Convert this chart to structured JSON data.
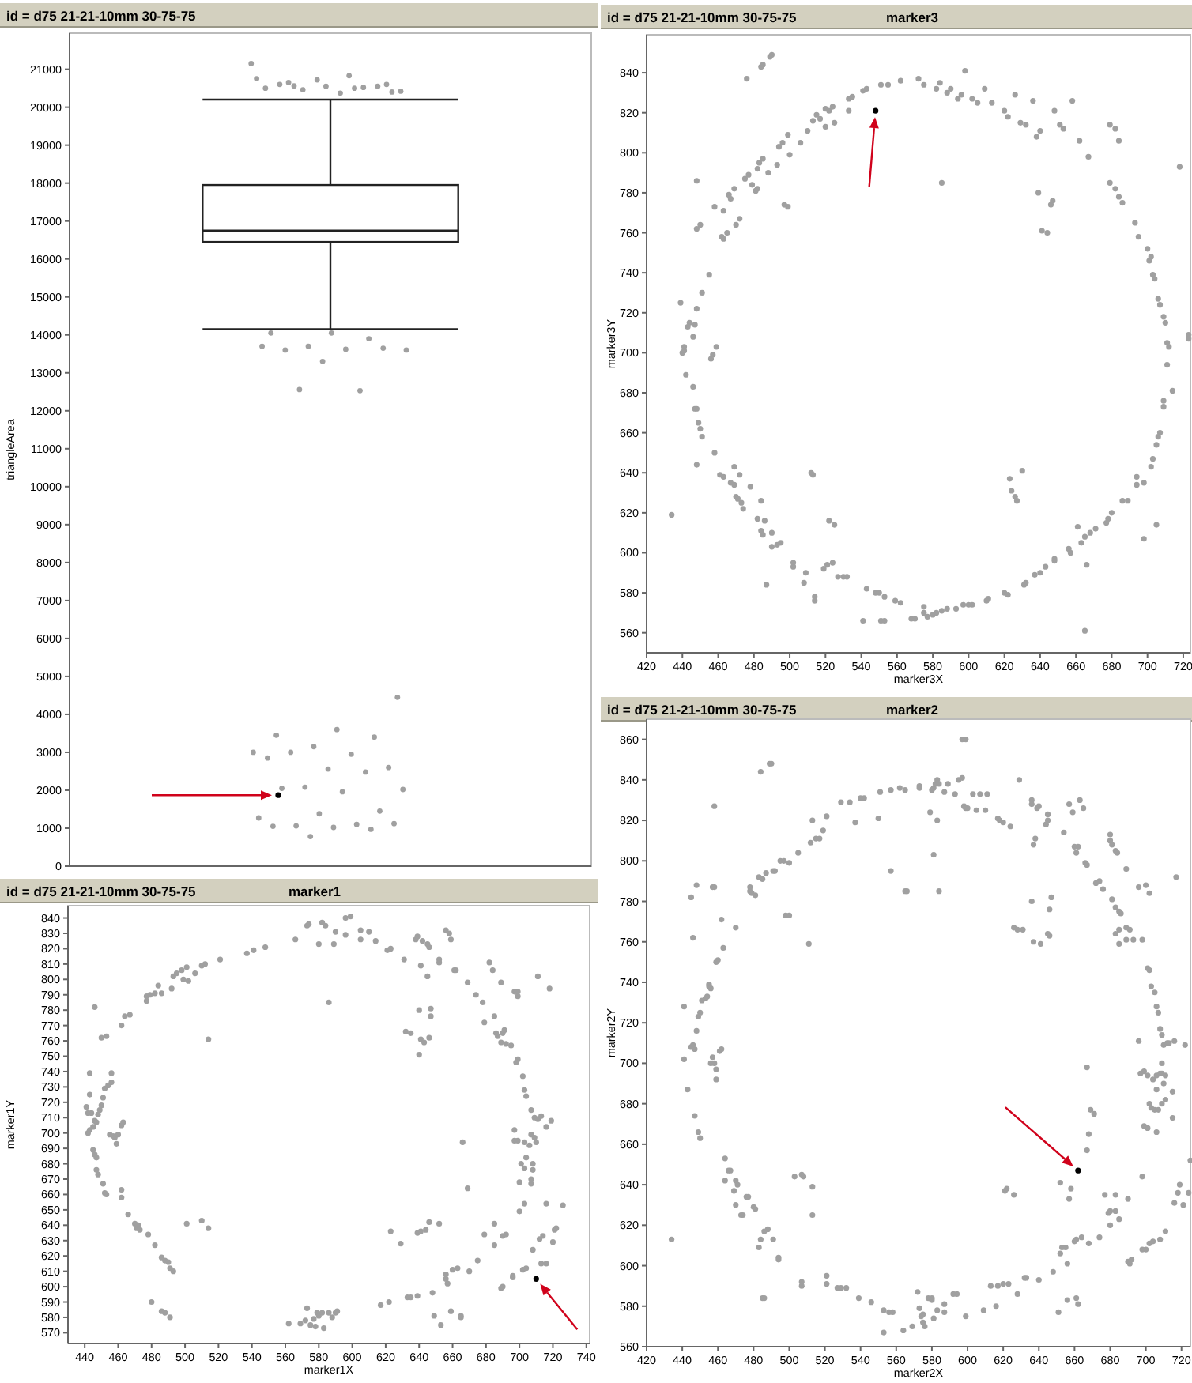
{
  "chart_data": [
    {
      "type": "box",
      "title": "id = d75 21-21-10mm 30-75-75",
      "ylabel": "triangleArea",
      "categories": [
        null
      ],
      "tick_labels": "y",
      "marker": "circle",
      "ylim": [
        0,
        21950
      ],
      "yticks": [
        0,
        1000,
        2000,
        3000,
        4000,
        5000,
        6000,
        7000,
        8000,
        9000,
        10000,
        11000,
        12000,
        13000,
        14000,
        15000,
        16000,
        17000,
        18000,
        19000,
        20000,
        21000
      ],
      "boxes": [
        {
          "low": 14150,
          "q1": 16450,
          "median": 16750,
          "q3": 17950,
          "high": 20200,
          "outliers": [
            21150,
            20830,
            20650,
            20600,
            20550,
            20500,
            20520,
            20460,
            20420,
            20370,
            20600,
            20550,
            20720,
            20750,
            20500,
            20560,
            20400,
            14050,
            14050,
            13900,
            13700,
            13600,
            13620,
            13600,
            13650,
            13300,
            13700,
            12530,
            12560,
            4450,
            3600,
            3450,
            3400,
            3150,
            3000,
            2950,
            3000,
            2600,
            2560,
            2850,
            2480,
            2080,
            2020,
            1960,
            2050,
            1450,
            1380,
            1270,
            1100,
            1060,
            1120,
            1020,
            1050,
            970,
            780
          ]
        }
      ],
      "series": [
        {
          "type": "scatter",
          "color": "#000000",
          "x": [
            null
          ],
          "values": [
            1870
          ]
        }
      ]
    },
    {
      "type": "scatter",
      "title": "id = d75 21-21-10mm 30-75-75",
      "subtitle": "marker3",
      "xlabel": "marker3X",
      "ylabel": "marker3Y",
      "marker": "circle",
      "xlim": [
        420,
        724
      ],
      "ylim": [
        550,
        859
      ],
      "xticks": [
        420,
        440,
        460,
        480,
        500,
        520,
        540,
        560,
        580,
        600,
        620,
        640,
        660,
        680,
        700,
        720
      ],
      "yticks": [
        560,
        580,
        600,
        620,
        640,
        660,
        680,
        700,
        720,
        740,
        760,
        780,
        800,
        820,
        840
      ],
      "series": [
        {
          "color": "#a0a0a0",
          "x": [
            490,
            489,
            484,
            485,
            476,
            448,
            458,
            463,
            466,
            467,
            469,
            462,
            463,
            465,
            470,
            472,
            448,
            450,
            475,
            477,
            479,
            481,
            482,
            483,
            485,
            482,
            488,
            493,
            497,
            499,
            494,
            496,
            499,
            500,
            506,
            510,
            513,
            515,
            517,
            520,
            522,
            524,
            520,
            525,
            533,
            535,
            533,
            541,
            543,
            551,
            555,
            562,
            572,
            575,
            582,
            584,
            588,
            590,
            594,
            596,
            598,
            602,
            605,
            609,
            613,
            620,
            622,
            626,
            629,
            632,
            636,
            638,
            640,
            648,
            651,
            653,
            658,
            662,
            667,
            679,
            682,
            684,
            585,
            647,
            646,
            639,
            641,
            644,
            679,
            682,
            684,
            686,
            693,
            695,
            700,
            702,
            701,
            703,
            704,
            706,
            707,
            709,
            710,
            711,
            712,
            711,
            714,
            709,
            709,
            707,
            706,
            705,
            703,
            702,
            698,
            694,
            694,
            689,
            686,
            680,
            678,
            677,
            671,
            665,
            668,
            663,
            661,
            656,
            657,
            648,
            648,
            643,
            640,
            637,
            632,
            631,
            622,
            620,
            611,
            610,
            602,
            600,
            597,
            593,
            588,
            585,
            582,
            580,
            577,
            575,
            575,
            570,
            568,
            562,
            559,
            553,
            551,
            553,
            541,
            543,
            548,
            550,
            530,
            532,
            527,
            521,
            524,
            519,
            514,
            514,
            509,
            508,
            502,
            502,
            495,
            493,
            490,
            490,
            485,
            484,
            486,
            482,
            487,
            484,
            478,
            473,
            474,
            470,
            471,
            469,
            467,
            472,
            469,
            461,
            463,
            458,
            451,
            450,
            449,
            447,
            448,
            446,
            442,
            440,
            441,
            441,
            443,
            444,
            446,
            447,
            448,
            451,
            455,
            439,
            456,
            457,
            459,
            448,
            434,
            513,
            512,
            522,
            525,
            623,
            624,
            626,
            627,
            630,
            665,
            666,
            698,
            705,
            718,
            723,
            723
          ],
          "values": [
            849,
            848,
            843,
            844,
            837,
            786,
            773,
            771,
            779,
            777,
            782,
            758,
            757,
            760,
            764,
            767,
            762,
            764,
            787,
            789,
            784,
            781,
            782,
            795,
            797,
            792,
            790,
            794,
            774,
            773,
            803,
            805,
            809,
            799,
            805,
            811,
            816,
            819,
            817,
            822,
            821,
            823,
            813,
            815,
            827,
            828,
            821,
            831,
            832,
            834,
            834,
            836,
            837,
            834,
            832,
            835,
            830,
            832,
            827,
            829,
            841,
            827,
            825,
            832,
            825,
            821,
            818,
            829,
            815,
            814,
            826,
            808,
            811,
            821,
            814,
            812,
            826,
            806,
            798,
            814,
            812,
            806,
            785,
            776,
            774,
            780,
            761,
            760,
            785,
            782,
            778,
            775,
            765,
            758,
            752,
            748,
            746,
            739,
            737,
            727,
            724,
            718,
            715,
            705,
            703,
            694,
            681,
            676,
            673,
            660,
            658,
            654,
            647,
            643,
            635,
            634,
            638,
            626,
            626,
            620,
            617,
            615,
            612,
            608,
            610,
            605,
            613,
            602,
            600,
            596,
            597,
            593,
            590,
            589,
            585,
            584,
            579,
            580,
            577,
            576,
            574,
            574,
            574,
            572,
            572,
            571,
            570,
            569,
            568,
            570,
            573,
            567,
            567,
            575,
            576,
            578,
            566,
            566,
            566,
            582,
            580,
            580,
            588,
            588,
            588,
            594,
            595,
            592,
            578,
            576,
            590,
            585,
            593,
            595,
            605,
            604,
            603,
            610,
            609,
            611,
            616,
            617,
            584,
            626,
            633,
            625,
            622,
            628,
            627,
            634,
            635,
            639,
            643,
            639,
            638,
            650,
            658,
            662,
            665,
            672,
            672,
            683,
            689,
            700,
            703,
            701,
            713,
            715,
            708,
            714,
            722,
            730,
            739,
            725,
            697,
            699,
            703,
            644,
            619,
            639,
            640,
            616,
            614,
            637,
            631,
            628,
            626,
            641,
            561,
            594,
            607,
            614,
            793,
            709,
            707
          ]
        },
        {
          "color": "#000000",
          "x": [
            548
          ],
          "values": [
            821
          ]
        }
      ]
    },
    {
      "type": "scatter",
      "title": "id = d75 21-21-10mm 30-75-75",
      "subtitle": "marker2",
      "xlabel": "marker2X",
      "ylabel": "marker2Y",
      "marker": "circle",
      "xlim": [
        420,
        725
      ],
      "ylim": [
        560,
        870
      ],
      "xticks": [
        420,
        440,
        460,
        480,
        500,
        520,
        540,
        560,
        580,
        600,
        620,
        640,
        660,
        680,
        700,
        720
      ],
      "yticks": [
        560,
        580,
        600,
        620,
        640,
        660,
        680,
        700,
        720,
        740,
        760,
        780,
        800,
        820,
        840,
        860
      ],
      "series": [
        {
          "color": "#a0a0a0",
          "x": [
            597,
            599,
            484,
            489,
            490,
            458,
            597,
            595,
            629,
            448,
            457,
            458,
            445,
            446,
            462,
            463,
            470,
            460,
            459,
            478,
            478,
            479,
            481,
            483,
            485,
            487,
            491,
            492,
            495,
            497,
            500,
            498,
            500,
            505,
            511,
            512,
            513,
            515,
            517,
            519,
            521,
            529,
            534,
            537,
            540,
            542,
            550,
            551,
            557,
            557,
            562,
            565,
            565,
            566,
            573,
            573,
            579,
            580,
            581,
            582,
            583,
            584,
            583,
            581,
            584,
            587,
            589,
            593,
            598,
            599,
            600,
            603,
            605,
            607,
            610,
            611,
            617,
            618,
            620,
            624,
            636,
            636,
            638,
            637,
            639,
            640,
            645,
            645,
            644,
            654,
            657,
            659,
            660,
            662,
            661,
            663,
            665,
            666,
            667,
            672,
            674,
            676,
            680,
            680,
            681,
            683,
            684,
            681,
            683,
            685,
            686,
            689,
            689,
            691,
            696,
            700,
            702,
            717,
            636,
            637,
            641,
            645,
            646,
            646,
            647,
            626,
            628,
            631,
            683,
            685,
            685,
            689,
            693,
            698,
            701,
            702,
            703,
            705,
            706,
            707,
            708,
            709,
            710,
            712,
            713,
            716,
            722,
            696,
            697,
            699,
            701,
            704,
            706,
            708,
            706,
            709,
            709,
            710,
            711,
            715,
            715,
            709,
            702,
            703,
            705,
            699,
            701,
            706,
            707,
            711,
            667,
            669,
            671,
            668,
            667,
            658,
            652,
            657,
            698,
            719,
            718,
            716,
            721,
            724,
            725,
            711,
            708,
            704,
            702,
            700,
            698,
            690,
            691,
            692,
            680,
            679,
            683,
            683,
            677,
            690,
            685,
            680,
            674,
            668,
            664,
            661,
            660,
            655,
            653,
            652,
            656,
            651,
            656,
            661,
            662,
            648,
            640,
            633,
            632,
            628,
            623,
            620,
            617,
            616,
            613,
            609,
            599,
            594,
            592,
            587,
            587,
            583,
            581,
            580,
            578,
            580,
            575,
            572,
            573,
            575,
            576,
            574,
            569,
            564,
            558,
            556,
            553,
            553,
            546,
            539,
            532,
            529,
            527,
            521,
            521,
            507,
            507,
            494,
            494,
            491,
            488,
            486,
            486,
            485,
            484,
            483,
            476,
            477,
            473,
            474,
            471,
            470,
            469,
            470,
            467,
            466,
            464,
            464,
            480,
            481,
            503,
            507,
            508,
            513,
            513,
            621,
            622,
            626,
            434,
            441,
            441,
            443,
            445,
            446,
            447,
            448,
            449,
            450,
            451,
            453,
            454,
            455,
            455,
            456,
            456,
            457,
            458,
            459,
            459,
            461,
            462,
            449,
            450,
            447
          ],
          "values": [
            860,
            860,
            844,
            848,
            848,
            827,
            841,
            840,
            840,
            788,
            787,
            787,
            782,
            762,
            771,
            757,
            767,
            751,
            750,
            787,
            785,
            784,
            783,
            792,
            791,
            794,
            795,
            795,
            800,
            800,
            799,
            773,
            773,
            804,
            759,
            809,
            820,
            811,
            811,
            815,
            822,
            829,
            829,
            819,
            831,
            831,
            821,
            834,
            835,
            795,
            836,
            835,
            785,
            785,
            837,
            836,
            824,
            835,
            836,
            838,
            840,
            838,
            820,
            803,
            785,
            834,
            838,
            833,
            827,
            826,
            826,
            833,
            825,
            833,
            825,
            833,
            821,
            820,
            819,
            817,
            830,
            828,
            811,
            808,
            826,
            827,
            823,
            820,
            818,
            814,
            828,
            824,
            807,
            807,
            804,
            830,
            826,
            799,
            798,
            789,
            790,
            786,
            813,
            810,
            808,
            805,
            804,
            781,
            777,
            775,
            774,
            796,
            767,
            766,
            787,
            788,
            784,
            792,
            780,
            760,
            759,
            764,
            763,
            776,
            782,
            767,
            766,
            766,
            764,
            766,
            759,
            761,
            761,
            761,
            747,
            746,
            738,
            735,
            728,
            725,
            717,
            714,
            709,
            710,
            710,
            711,
            709,
            711,
            695,
            696,
            694,
            692,
            694,
            695,
            687,
            700,
            695,
            690,
            682,
            686,
            673,
            680,
            680,
            678,
            677,
            669,
            668,
            666,
            677,
            694,
            698,
            677,
            675,
            665,
            657,
            638,
            641,
            633,
            644,
            640,
            636,
            631,
            630,
            636,
            652,
            617,
            613,
            612,
            611,
            608,
            608,
            602,
            601,
            603,
            627,
            626,
            627,
            635,
            635,
            633,
            623,
            620,
            614,
            611,
            614,
            613,
            612,
            609,
            609,
            606,
            601,
            577,
            583,
            584,
            581,
            597,
            593,
            594,
            594,
            586,
            591,
            591,
            590,
            580,
            590,
            578,
            575,
            586,
            586,
            581,
            577,
            578,
            574,
            583,
            584,
            584,
            572,
            587,
            579,
            576,
            570,
            575,
            570,
            568,
            577,
            577,
            578,
            567,
            582,
            584,
            589,
            589,
            589,
            595,
            591,
            592,
            590,
            604,
            603,
            613,
            618,
            617,
            584,
            584,
            613,
            609,
            634,
            634,
            625,
            625,
            640,
            642,
            637,
            630,
            647,
            647,
            642,
            653,
            629,
            628,
            644,
            645,
            644,
            639,
            625,
            637,
            638,
            635,
            613,
            702,
            728,
            687,
            708,
            709,
            707,
            716,
            723,
            725,
            731,
            732,
            733,
            739,
            738,
            737,
            700,
            703,
            700,
            697,
            692,
            706,
            707,
            666,
            663,
            674
          ]
        },
        {
          "color": "#000000",
          "x": [
            662
          ],
          "values": [
            647
          ]
        }
      ]
    },
    {
      "type": "scatter",
      "title": "id = d75 21-21-10mm 30-75-75",
      "subtitle": "marker1",
      "xlabel": "marker1X",
      "ylabel": "marker1Y",
      "marker": "circle",
      "xlim": [
        430,
        742
      ],
      "ylim": [
        563,
        848
      ],
      "xticks": [
        440,
        460,
        480,
        500,
        520,
        540,
        560,
        580,
        600,
        620,
        640,
        660,
        680,
        700,
        720,
        740
      ],
      "yticks": [
        570,
        580,
        590,
        600,
        610,
        620,
        630,
        640,
        650,
        660,
        670,
        680,
        690,
        700,
        710,
        720,
        730,
        740,
        750,
        760,
        770,
        780,
        790,
        800,
        810,
        820,
        830,
        840
      ],
      "series": [
        {
          "color": "#a0a0a0",
          "x": [
            441,
            443,
            443,
            442,
            444,
            442,
            443,
            445,
            446,
            447,
            448,
            449,
            450,
            451,
            452,
            454,
            456,
            456,
            455,
            457,
            458,
            459,
            460,
            462,
            463,
            462,
            462,
            445,
            446,
            447,
            447,
            448,
            451,
            452,
            453,
            466,
            470,
            471,
            472,
            473,
            478,
            482,
            486,
            488,
            490,
            491,
            493,
            480,
            486,
            488,
            491,
            446,
            450,
            453,
            462,
            464,
            467,
            477,
            477,
            479,
            482,
            484,
            486,
            492,
            493,
            495,
            498,
            499,
            501,
            502,
            506,
            510,
            512,
            514,
            521,
            537,
            541,
            548,
            566,
            574,
            573,
            580,
            582,
            584,
            586,
            589,
            590,
            596,
            596,
            599,
            605,
            605,
            610,
            614,
            621,
            623,
            631,
            638,
            639,
            641,
            642,
            645,
            646,
            645,
            640,
            640,
            641,
            643,
            646,
            647,
            647,
            632,
            635,
            652,
            652,
            656,
            658,
            659,
            661,
            662,
            669,
            674,
            678,
            679,
            682,
            684,
            685,
            686,
            687,
            689,
            689,
            690,
            691,
            692,
            695,
            697,
            699,
            699,
            711,
            718,
            699,
            698,
            702,
            703,
            704,
            707,
            709,
            711,
            713,
            719,
            716,
            697,
            697,
            699,
            703,
            706,
            707,
            709,
            710,
            704,
            701,
            703,
            708,
            708,
            700,
            707,
            707,
            666,
            669,
            700,
            703,
            716,
            726,
            685,
            679,
            685,
            690,
            692,
            708,
            712,
            714,
            720,
            721,
            722,
            716,
            713,
            704,
            702,
            696,
            696,
            690,
            689,
            675,
            670,
            663,
            660,
            656,
            656,
            657,
            659,
            665,
            665,
            649,
            648,
            646,
            644,
            652,
            639,
            641,
            629,
            623,
            622,
            617,
            633,
            635,
            639,
            653,
            501,
            510,
            514,
            562,
            569,
            572,
            573,
            575,
            577,
            579,
            578,
            580,
            582,
            583,
            586,
            588,
            590,
            591
          ],
          "values": [
            717,
            739,
            725,
            713,
            713,
            700,
            702,
            704,
            708,
            707,
            712,
            715,
            718,
            723,
            729,
            731,
            733,
            739,
            699,
            698,
            697,
            693,
            699,
            705,
            707,
            663,
            658,
            689,
            686,
            684,
            676,
            673,
            667,
            661,
            660,
            647,
            641,
            638,
            640,
            637,
            634,
            627,
            619,
            617,
            616,
            612,
            610,
            590,
            584,
            583,
            580,
            782,
            762,
            763,
            770,
            776,
            777,
            786,
            789,
            790,
            791,
            796,
            791,
            794,
            802,
            804,
            806,
            800,
            808,
            799,
            804,
            809,
            810,
            761,
            813,
            817,
            819,
            821,
            826,
            836,
            835,
            823,
            837,
            835,
            785,
            823,
            831,
            829,
            840,
            841,
            832,
            826,
            831,
            825,
            819,
            820,
            813,
            826,
            828,
            809,
            825,
            823,
            821,
            802,
            780,
            751,
            761,
            759,
            762,
            781,
            776,
            766,
            765,
            813,
            811,
            832,
            830,
            826,
            806,
            806,
            798,
            790,
            785,
            772,
            811,
            806,
            776,
            765,
            763,
            759,
            798,
            765,
            767,
            758,
            757,
            792,
            792,
            789,
            802,
            794,
            748,
            746,
            737,
            728,
            724,
            715,
            710,
            709,
            711,
            708,
            704,
            702,
            695,
            695,
            694,
            692,
            699,
            697,
            694,
            684,
            680,
            677,
            680,
            676,
            668,
            670,
            667,
            694,
            664,
            649,
            654,
            654,
            653,
            641,
            634,
            627,
            633,
            634,
            624,
            631,
            633,
            629,
            637,
            638,
            615,
            615,
            612,
            611,
            607,
            606,
            600,
            599,
            617,
            610,
            612,
            611,
            608,
            605,
            602,
            584,
            580,
            581,
            581,
            596,
            642,
            637,
            641,
            635,
            636,
            628,
            636,
            590,
            588,
            593,
            593,
            594,
            575,
            641,
            643,
            638,
            576,
            576,
            578,
            586,
            575,
            579,
            583,
            574,
            581,
            583,
            573,
            583,
            580,
            583,
            584
          ]
        },
        {
          "color": "#000000",
          "x": [
            710
          ],
          "values": [
            605
          ]
        }
      ]
    }
  ]
}
